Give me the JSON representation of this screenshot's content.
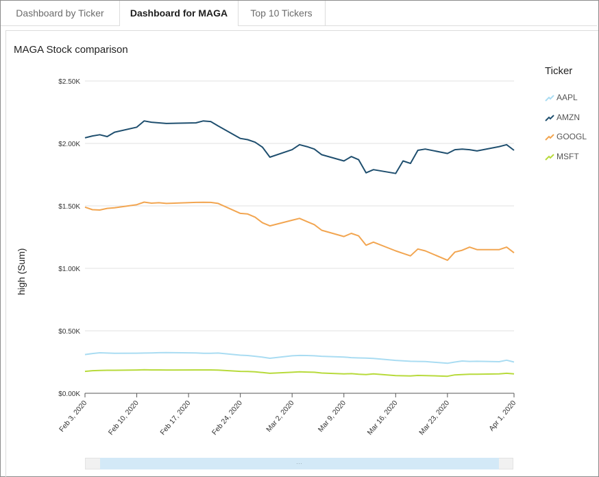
{
  "tabs": [
    {
      "label": "Dashboard by Ticker",
      "active": false
    },
    {
      "label": "Dashboard for MAGA",
      "active": true
    },
    {
      "label": "Top 10 Tickers",
      "active": false
    }
  ],
  "colors": {
    "AAPL": "#a9dcf2",
    "AMZN": "#1e4e6e",
    "GOOGL": "#f2a550",
    "MSFT": "#b7da3a"
  },
  "chart_data": {
    "type": "line",
    "title": "MAGA Stock comparison",
    "ylabel": "high (Sum)",
    "xlabel": "",
    "legend_title": "Ticker",
    "legend_position": "right",
    "grid": true,
    "ylim": [
      0,
      2500
    ],
    "y_ticks": [
      "$0.00K",
      "$0.50K",
      "$1.00K",
      "$1.50K",
      "$2.00K",
      "$2.50K"
    ],
    "x_ticks": [
      "Feb 3, 2020",
      "Feb 10, 2020",
      "Feb 17, 2020",
      "Feb 24, 2020",
      "Mar 2, 2020",
      "Mar 9, 2020",
      "Mar 16, 2020",
      "Mar 23, 2020",
      "Apr 1, 2020"
    ],
    "x": [
      "2020-02-03",
      "2020-02-04",
      "2020-02-05",
      "2020-02-06",
      "2020-02-07",
      "2020-02-10",
      "2020-02-11",
      "2020-02-12",
      "2020-02-13",
      "2020-02-14",
      "2020-02-18",
      "2020-02-19",
      "2020-02-20",
      "2020-02-21",
      "2020-02-24",
      "2020-02-25",
      "2020-02-26",
      "2020-02-27",
      "2020-02-28",
      "2020-03-02",
      "2020-03-03",
      "2020-03-04",
      "2020-03-05",
      "2020-03-06",
      "2020-03-09",
      "2020-03-10",
      "2020-03-11",
      "2020-03-12",
      "2020-03-13",
      "2020-03-16",
      "2020-03-17",
      "2020-03-18",
      "2020-03-19",
      "2020-03-20",
      "2020-03-23",
      "2020-03-24",
      "2020-03-25",
      "2020-03-26",
      "2020-03-27",
      "2020-03-30",
      "2020-03-31",
      "2020-04-01"
    ],
    "series": [
      {
        "name": "AAPL",
        "values": [
          310,
          318,
          324,
          322,
          320,
          321,
          322,
          323,
          325,
          326,
          323,
          320,
          320,
          322,
          305,
          302,
          296,
          289,
          280,
          300,
          303,
          302,
          300,
          296,
          290,
          285,
          283,
          282,
          279,
          263,
          260,
          256,
          255,
          254,
          240,
          250,
          258,
          255,
          256,
          253,
          265,
          250
        ]
      },
      {
        "name": "AMZN",
        "values": [
          2045,
          2060,
          2070,
          2055,
          2090,
          2130,
          2180,
          2170,
          2165,
          2160,
          2165,
          2180,
          2175,
          2140,
          2040,
          2030,
          2010,
          1970,
          1890,
          1950,
          1990,
          1975,
          1955,
          1910,
          1860,
          1895,
          1870,
          1765,
          1790,
          1760,
          1860,
          1840,
          1945,
          1955,
          1920,
          1950,
          1955,
          1950,
          1940,
          1975,
          1990,
          1945
        ]
      },
      {
        "name": "GOOGL",
        "values": [
          1490,
          1470,
          1467,
          1480,
          1485,
          1510,
          1530,
          1522,
          1525,
          1520,
          1528,
          1529,
          1528,
          1520,
          1440,
          1435,
          1410,
          1365,
          1340,
          1385,
          1400,
          1375,
          1350,
          1305,
          1255,
          1280,
          1260,
          1185,
          1210,
          1140,
          1120,
          1100,
          1155,
          1140,
          1065,
          1130,
          1145,
          1170,
          1150,
          1150,
          1170,
          1125
        ]
      },
      {
        "name": "MSFT",
        "values": [
          175,
          181,
          183,
          184,
          184,
          186,
          188,
          187,
          187,
          186,
          187,
          187,
          187,
          185,
          175,
          174,
          172,
          166,
          160,
          168,
          172,
          170,
          168,
          162,
          155,
          157,
          153,
          150,
          155,
          141,
          140,
          139,
          143,
          142,
          136,
          147,
          150,
          152,
          152,
          155,
          160,
          155
        ]
      }
    ]
  }
}
